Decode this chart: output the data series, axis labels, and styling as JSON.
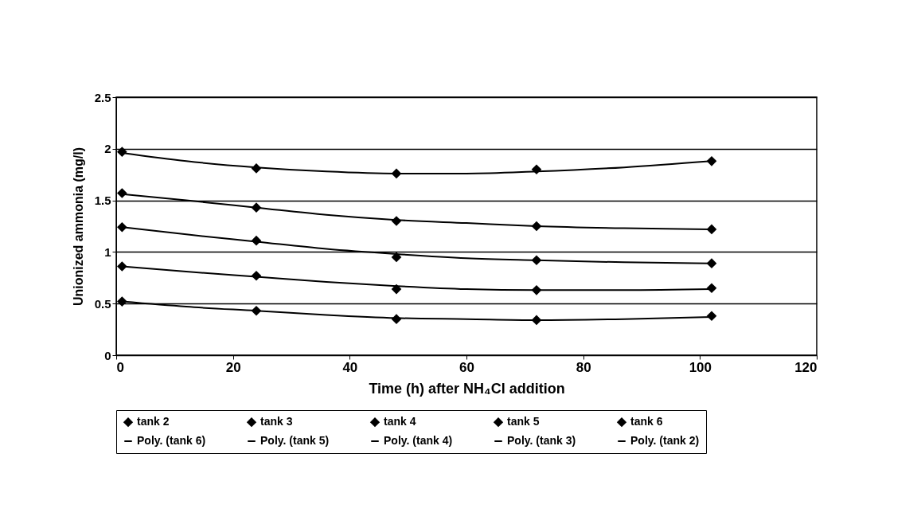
{
  "chart_data": {
    "type": "scatter",
    "xlabel": "Time (h) after NH₄Cl addition",
    "ylabel": "Unionized ammonia (mg/l)",
    "x": [
      1,
      24,
      48,
      72,
      102
    ],
    "series": [
      {
        "name": "tank 2",
        "color": "#000000",
        "values": [
          0.52,
          0.43,
          0.35,
          0.34,
          0.38
        ]
      },
      {
        "name": "tank 3",
        "color": "#000000",
        "values": [
          0.86,
          0.77,
          0.64,
          0.63,
          0.65
        ]
      },
      {
        "name": "tank 4",
        "color": "#000000",
        "values": [
          1.24,
          1.11,
          0.95,
          0.92,
          0.89
        ]
      },
      {
        "name": "tank 5",
        "color": "#000000",
        "values": [
          1.57,
          1.43,
          1.3,
          1.25,
          1.22
        ]
      },
      {
        "name": "tank 6",
        "color": "#000000",
        "values": [
          1.97,
          1.81,
          1.76,
          1.8,
          1.88
        ]
      },
      {
        "name": "Poly. (tank 6)",
        "type": "line",
        "marker": "none",
        "color": "#000000",
        "x": [
          1,
          12,
          24,
          36,
          48,
          60,
          72,
          87,
          102
        ],
        "values": [
          1.96,
          1.88,
          1.82,
          1.78,
          1.76,
          1.76,
          1.78,
          1.82,
          1.88
        ]
      },
      {
        "name": "Poly. (tank 5)",
        "type": "line",
        "marker": "none",
        "color": "#000000",
        "x": [
          1,
          12,
          24,
          36,
          48,
          60,
          72,
          87,
          102
        ],
        "values": [
          1.56,
          1.5,
          1.43,
          1.36,
          1.31,
          1.28,
          1.25,
          1.23,
          1.22
        ]
      },
      {
        "name": "Poly. (tank 4)",
        "type": "line",
        "marker": "none",
        "color": "#000000",
        "x": [
          1,
          12,
          24,
          36,
          48,
          60,
          72,
          87,
          102
        ],
        "values": [
          1.24,
          1.17,
          1.1,
          1.03,
          0.98,
          0.94,
          0.92,
          0.9,
          0.89
        ]
      },
      {
        "name": "Poly. (tank 3)",
        "type": "line",
        "marker": "none",
        "color": "#000000",
        "x": [
          1,
          12,
          24,
          36,
          48,
          60,
          72,
          87,
          102
        ],
        "values": [
          0.86,
          0.81,
          0.76,
          0.71,
          0.67,
          0.64,
          0.63,
          0.63,
          0.64
        ]
      },
      {
        "name": "Poly. (tank 2)",
        "type": "line",
        "marker": "none",
        "color": "#000000",
        "x": [
          1,
          12,
          24,
          36,
          48,
          60,
          72,
          87,
          102
        ],
        "values": [
          0.52,
          0.47,
          0.43,
          0.39,
          0.36,
          0.35,
          0.34,
          0.35,
          0.37
        ]
      }
    ],
    "xlim": [
      0,
      120
    ],
    "xticks": [
      0,
      20,
      40,
      60,
      80,
      100,
      120
    ],
    "ylim": [
      0,
      2.5
    ],
    "yticks": [
      0,
      0.5,
      1,
      1.5,
      2,
      2.5
    ],
    "grid": "y",
    "legend": "bottom",
    "marker": "diamond",
    "line_style": "solid"
  }
}
